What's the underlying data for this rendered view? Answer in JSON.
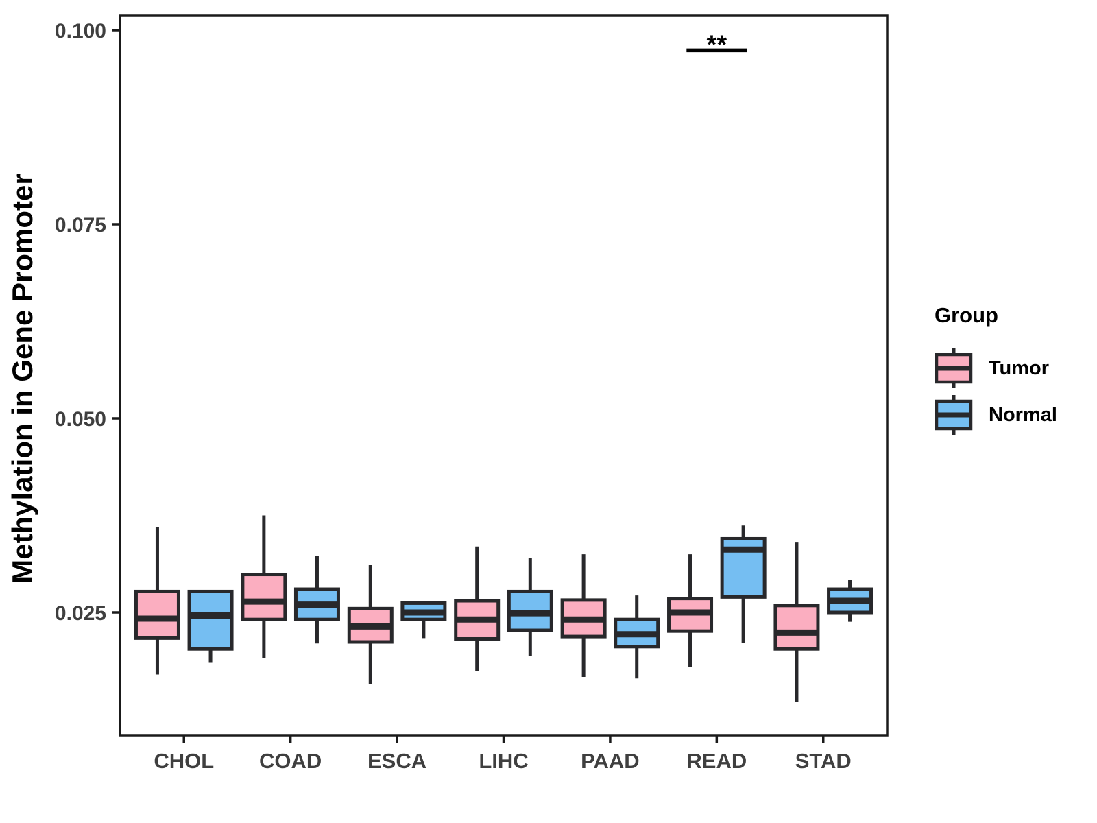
{
  "chart_data": {
    "type": "boxplot",
    "title": "",
    "xlabel": "",
    "ylabel": "Methylation in Gene Promoter",
    "categories": [
      "CHOL",
      "COAD",
      "ESCA",
      "LIHC",
      "PAAD",
      "READ",
      "STAD"
    ],
    "y_tick_labels": [
      "0.100",
      "0.075",
      "0.050",
      "0.025"
    ],
    "y_tick_values": [
      0.1,
      0.075,
      0.05,
      0.025
    ],
    "ylim": [
      0.0092,
      0.1019
    ],
    "grid": "none",
    "panel_background": "#FFFFFF",
    "legend": {
      "title": "Group",
      "position": "right",
      "entries": [
        {
          "label": "Tumor",
          "color": "#FBAEC0"
        },
        {
          "label": "Normal",
          "color": "#75BEF2"
        }
      ]
    },
    "series": [
      {
        "name": "Tumor",
        "color": "#FBAEC0",
        "boxes": [
          {
            "category": "CHOL",
            "min": 0.017,
            "q1": 0.0217,
            "median": 0.0242,
            "q3": 0.0277,
            "max": 0.036
          },
          {
            "category": "COAD",
            "min": 0.0191,
            "q1": 0.0241,
            "median": 0.0264,
            "q3": 0.0299,
            "max": 0.0375
          },
          {
            "category": "ESCA",
            "min": 0.0158,
            "q1": 0.0212,
            "median": 0.0232,
            "q3": 0.0255,
            "max": 0.0311
          },
          {
            "category": "LIHC",
            "min": 0.0174,
            "q1": 0.0216,
            "median": 0.0241,
            "q3": 0.0265,
            "max": 0.0335
          },
          {
            "category": "PAAD",
            "min": 0.0167,
            "q1": 0.0219,
            "median": 0.0241,
            "q3": 0.0266,
            "max": 0.0325
          },
          {
            "category": "READ",
            "min": 0.018,
            "q1": 0.0226,
            "median": 0.025,
            "q3": 0.0268,
            "max": 0.0325
          },
          {
            "category": "STAD",
            "min": 0.0135,
            "q1": 0.0203,
            "median": 0.0224,
            "q3": 0.0259,
            "max": 0.034
          }
        ]
      },
      {
        "name": "Normal",
        "color": "#75BEF2",
        "boxes": [
          {
            "category": "CHOL",
            "min": 0.0186,
            "q1": 0.0203,
            "median": 0.0246,
            "q3": 0.0277,
            "max": 0.0279
          },
          {
            "category": "COAD",
            "min": 0.021,
            "q1": 0.0241,
            "median": 0.026,
            "q3": 0.028,
            "max": 0.0323
          },
          {
            "category": "ESCA",
            "min": 0.0217,
            "q1": 0.0241,
            "median": 0.025,
            "q3": 0.0262,
            "max": 0.0265
          },
          {
            "category": "LIHC",
            "min": 0.0194,
            "q1": 0.0227,
            "median": 0.0249,
            "q3": 0.0277,
            "max": 0.032
          },
          {
            "category": "PAAD",
            "min": 0.0165,
            "q1": 0.0206,
            "median": 0.0222,
            "q3": 0.0241,
            "max": 0.0272
          },
          {
            "category": "READ",
            "min": 0.0211,
            "q1": 0.027,
            "median": 0.0331,
            "q3": 0.0345,
            "max": 0.0362
          },
          {
            "category": "STAD",
            "min": 0.0238,
            "q1": 0.025,
            "median": 0.0265,
            "q3": 0.028,
            "max": 0.0292
          }
        ]
      }
    ],
    "annotations": [
      {
        "label": "**",
        "category": "READ",
        "line_y": 0.0974,
        "text_y": 0.0988
      }
    ],
    "style": {
      "box_border": "#28282B",
      "panel_border": "#1A1A1A",
      "axis_text_color": "#3F3F3F",
      "axis_title_color": "#000000"
    }
  }
}
